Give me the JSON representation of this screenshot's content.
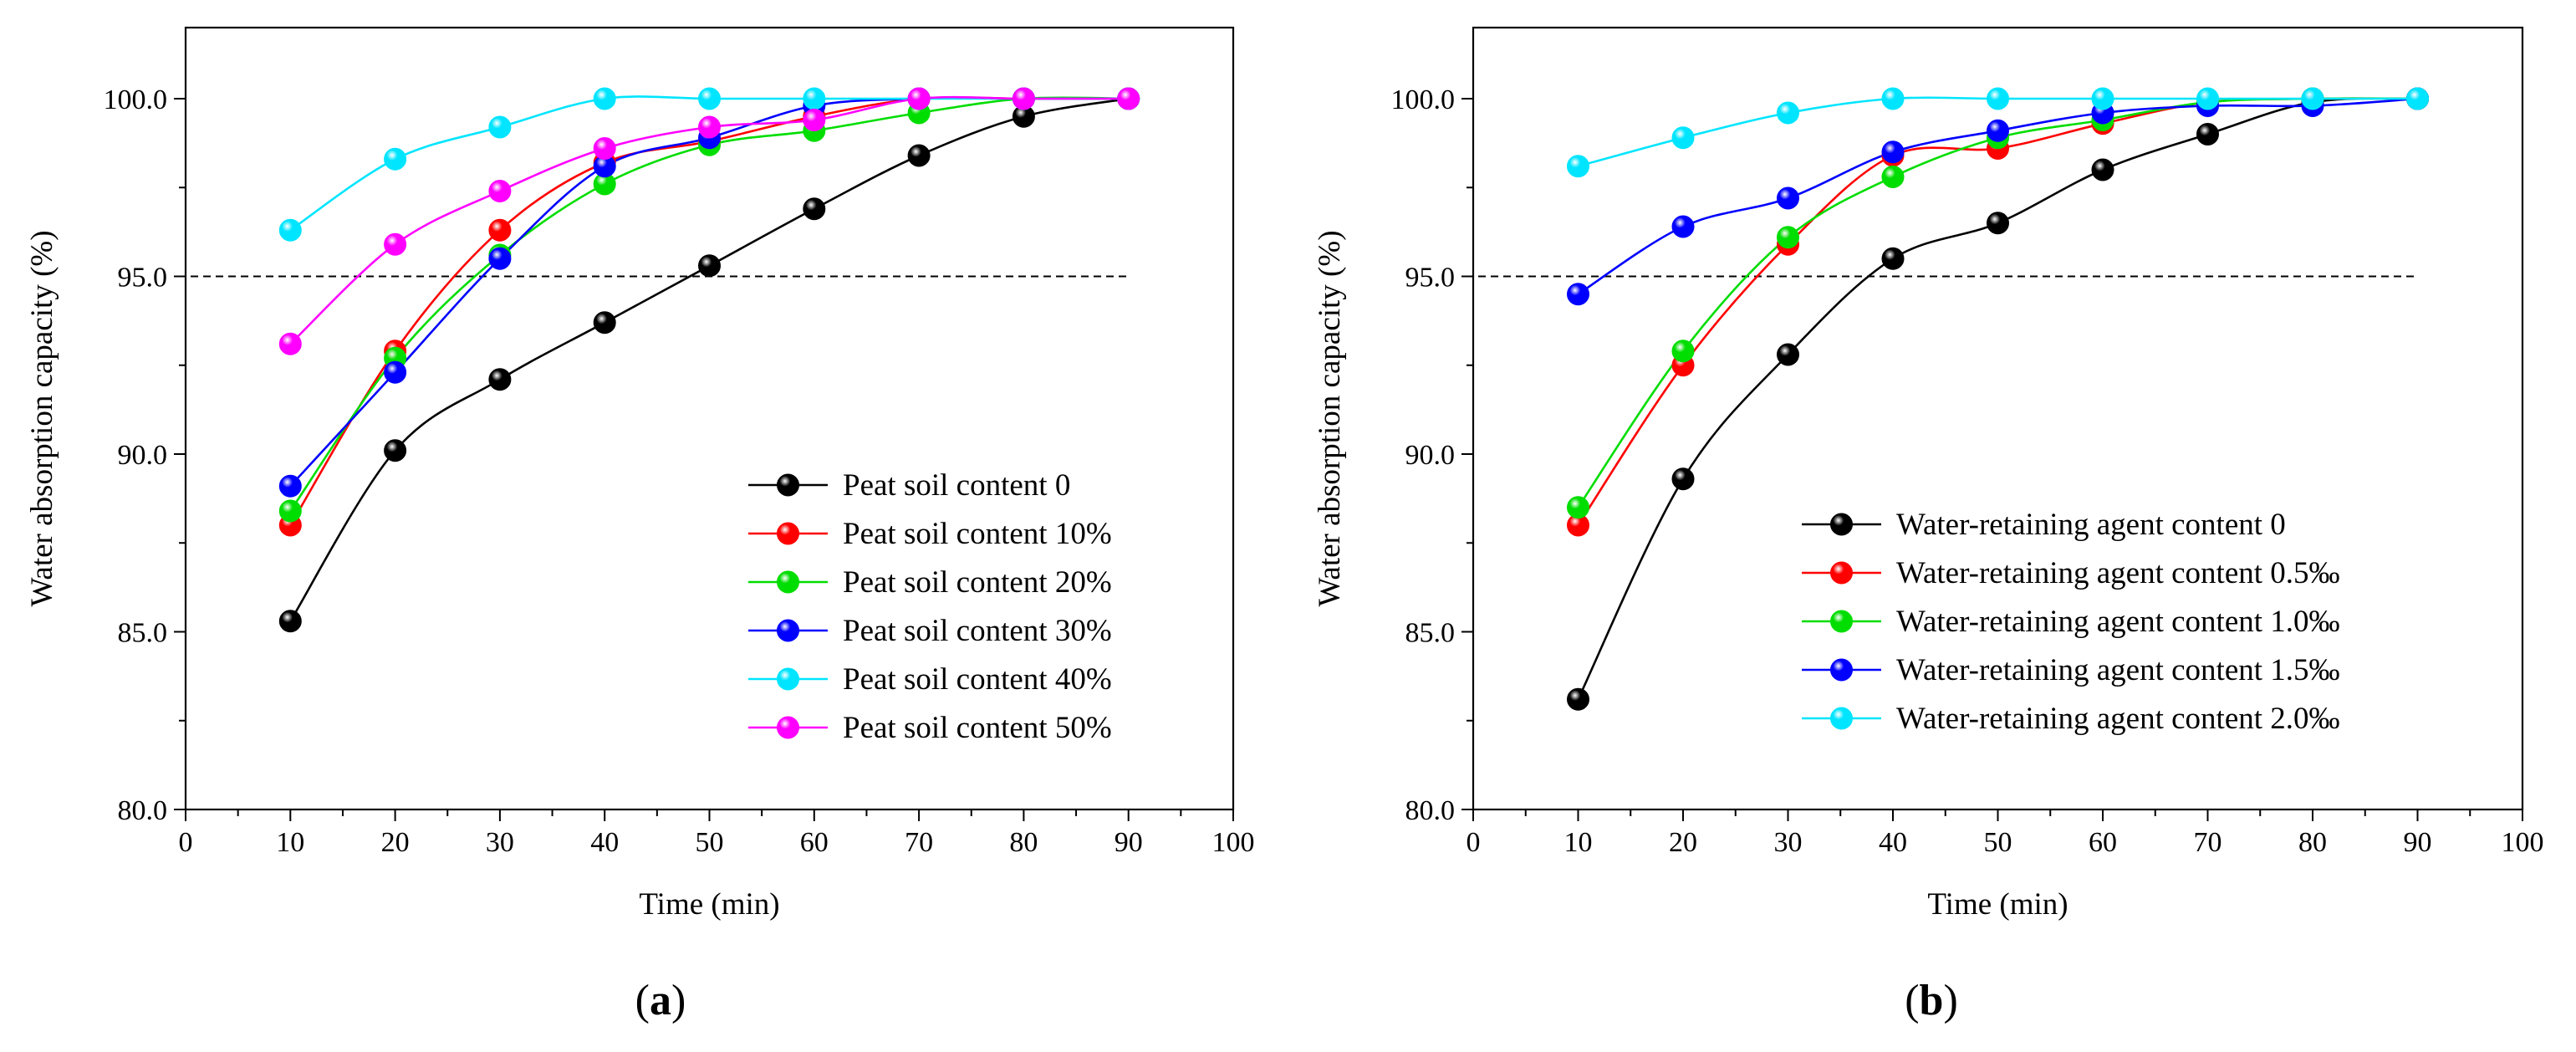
{
  "chart_data": [
    {
      "type": "line",
      "panel_label": "(a)",
      "xlabel": "Time (min)",
      "ylabel": "Water absorption capacity (%)",
      "xlim": [
        0,
        100
      ],
      "ylim": [
        80,
        102
      ],
      "xticks": [
        0,
        10,
        20,
        30,
        40,
        50,
        60,
        70,
        80,
        90,
        100
      ],
      "xtick_labels": [
        "0",
        "10",
        "20",
        "30",
        "40",
        "50",
        "60",
        "70",
        "80",
        "90",
        "100"
      ],
      "yticks": [
        80,
        85,
        90,
        95,
        100
      ],
      "ytick_labels": [
        "80.0",
        "85.0",
        "90.0",
        "95.0",
        "100.0"
      ],
      "reference_line": {
        "y": 95,
        "x_range": [
          0,
          90
        ],
        "style": "dashed"
      },
      "legend_position": "bottom-right",
      "x": [
        10,
        20,
        30,
        40,
        50,
        60,
        70,
        80,
        90
      ],
      "series": [
        {
          "name": "Peat soil content 0",
          "color": "#000000",
          "values": [
            85.3,
            90.1,
            92.1,
            93.7,
            95.3,
            96.9,
            98.4,
            99.5,
            100.0
          ]
        },
        {
          "name": "Peat soil content 10%",
          "color": "#ff0000",
          "values": [
            88.0,
            92.9,
            96.3,
            98.2,
            98.8,
            99.5,
            100.0,
            100.0,
            100.0
          ]
        },
        {
          "name": "Peat soil content 20%",
          "color": "#00dd00",
          "values": [
            88.4,
            92.7,
            95.6,
            97.6,
            98.7,
            99.1,
            99.6,
            100.0,
            100.0
          ]
        },
        {
          "name": "Peat soil content 30%",
          "color": "#0000ff",
          "values": [
            89.1,
            92.3,
            95.5,
            98.1,
            98.9,
            99.8,
            100.0,
            100.0,
            100.0
          ]
        },
        {
          "name": "Peat soil content 40%",
          "color": "#00e5ff",
          "values": [
            96.3,
            98.3,
            99.2,
            100.0,
            100.0,
            100.0,
            100.0,
            100.0,
            100.0
          ]
        },
        {
          "name": "Peat soil content 50%",
          "color": "#ff00ff",
          "values": [
            93.1,
            95.9,
            97.4,
            98.6,
            99.2,
            99.4,
            100.0,
            100.0,
            100.0
          ]
        }
      ]
    },
    {
      "type": "line",
      "panel_label": "(b)",
      "xlabel": "Time (min)",
      "ylabel": "Water absorption capacity (%)",
      "xlim": [
        0,
        100
      ],
      "ylim": [
        80,
        102
      ],
      "xticks": [
        0,
        10,
        20,
        30,
        40,
        50,
        60,
        70,
        80,
        90,
        100
      ],
      "xtick_labels": [
        "0",
        "10",
        "20",
        "30",
        "40",
        "50",
        "60",
        "70",
        "80",
        "90",
        "100"
      ],
      "yticks": [
        80,
        85,
        90,
        95,
        100
      ],
      "ytick_labels": [
        "80.0",
        "85.0",
        "90.0",
        "95.0",
        "100.0"
      ],
      "reference_line": {
        "y": 95,
        "x_range": [
          0,
          90
        ],
        "style": "dashed"
      },
      "legend_position": "bottom-right",
      "x": [
        10,
        20,
        30,
        40,
        50,
        60,
        70,
        80,
        90
      ],
      "series": [
        {
          "name": "Water-retaining agent content 0",
          "color": "#000000",
          "values": [
            83.1,
            89.3,
            92.8,
            95.5,
            96.5,
            98.0,
            99.0,
            99.9,
            100.0
          ]
        },
        {
          "name": "Water-retaining agent content 0.5‰",
          "color": "#ff0000",
          "values": [
            88.0,
            92.5,
            95.9,
            98.4,
            98.6,
            99.3,
            99.9,
            100.0,
            100.0
          ]
        },
        {
          "name": "Water-retaining agent content 1.0‰",
          "color": "#00dd00",
          "values": [
            88.5,
            92.9,
            96.1,
            97.8,
            98.9,
            99.4,
            99.9,
            100.0,
            100.0
          ]
        },
        {
          "name": "Water-retaining agent content 1.5‰",
          "color": "#0000ff",
          "values": [
            94.5,
            96.4,
            97.2,
            98.5,
            99.1,
            99.6,
            99.8,
            99.8,
            100.0
          ]
        },
        {
          "name": "Water-retaining agent content 2.0‰",
          "color": "#00e5ff",
          "values": [
            98.1,
            98.9,
            99.6,
            100.0,
            100.0,
            100.0,
            100.0,
            100.0,
            100.0
          ]
        }
      ]
    }
  ]
}
